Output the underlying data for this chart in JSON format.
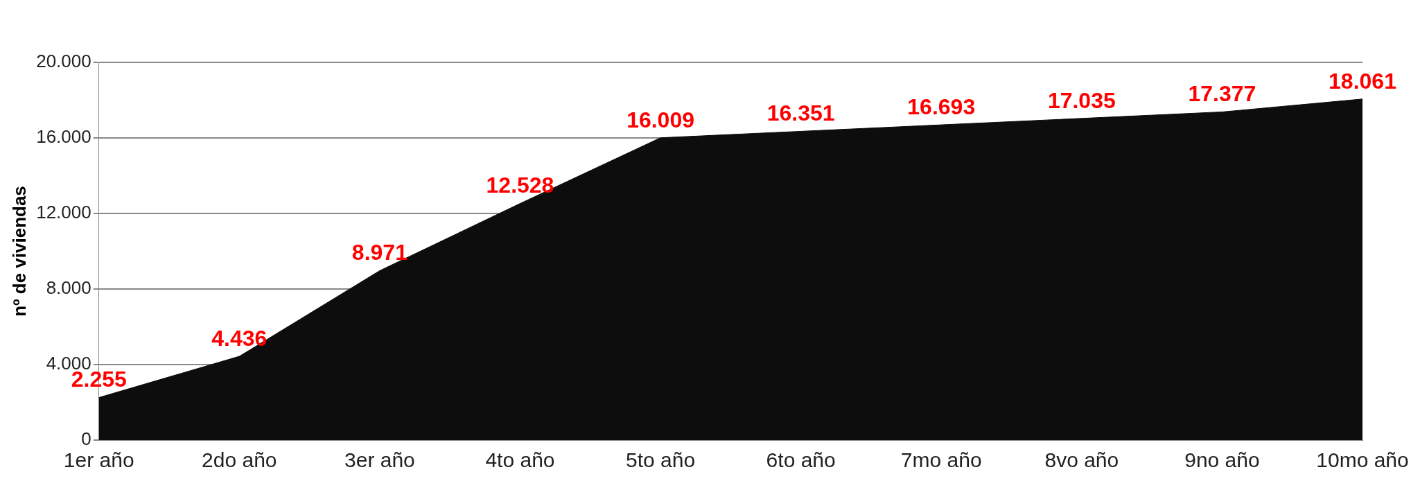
{
  "chart_data": {
    "type": "area",
    "ylabel": "nº de viviendas",
    "categories": [
      "1er año",
      "2do año",
      "3er año",
      "4to año",
      "5to año",
      "6to año",
      "7mo año",
      "8vo año",
      "9no año",
      "10mo año"
    ],
    "values": [
      2255,
      4436,
      8971,
      12528,
      16009,
      16351,
      16693,
      17035,
      17377,
      18061
    ],
    "value_labels": [
      "2.255",
      "4.436",
      "8.971",
      "12.528",
      "16.009",
      "16.351",
      "16.693",
      "17.035",
      "17.377",
      "18.061"
    ],
    "color": "#0d0d0d",
    "ylim": [
      0,
      20000
    ],
    "yticks": [
      {
        "value": 0,
        "label": "0"
      },
      {
        "value": 4000,
        "label": "4.000"
      },
      {
        "value": 8000,
        "label": "8.000"
      },
      {
        "value": 12000,
        "label": "12.000"
      },
      {
        "value": 16000,
        "label": "16.000"
      },
      {
        "value": 20000,
        "label": "20.000"
      }
    ],
    "grid": "y",
    "legend": false
  }
}
